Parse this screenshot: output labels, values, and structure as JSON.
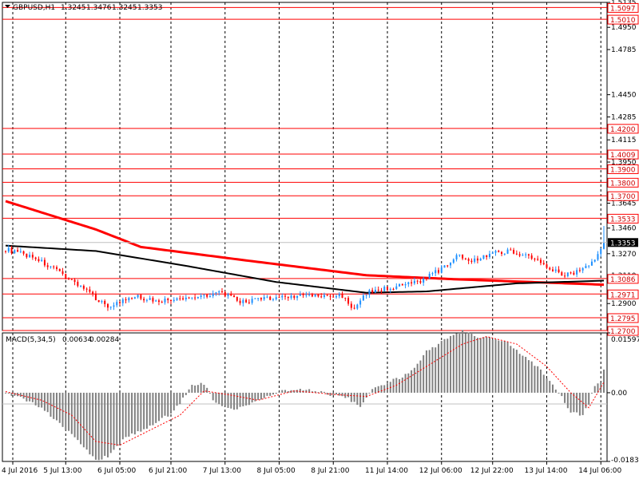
{
  "window": {
    "title": "GBPUSD,H1",
    "ohlc_values": [
      "1.3245",
      "1.3476",
      "1.3245",
      "1.3353"
    ],
    "dropdown_icon": "triangle-down-icon"
  },
  "colors": {
    "bull_candle": "#1e90ff",
    "bear_candle": "#ff0000",
    "level_line": "#ff0000",
    "ma_slow": "#ff0000",
    "ma_fast": "#000000",
    "macd_hist": "#808080",
    "macd_signal": "#ff0000",
    "grid": "#000000",
    "price_tag_bg": "#000000",
    "price_tag_text": "#ffffff"
  },
  "chart_data": [
    {
      "type": "candlestick",
      "title": "GBPUSD,H1",
      "price_axis": {
        "ticks": [
          "1.5135",
          "1.4950",
          "1.4785",
          "1.4450",
          "1.4285",
          "1.4115",
          "1.3950",
          "1.3645",
          "1.3460",
          "1.3270",
          "1.3110",
          "1.2900"
        ],
        "ylim": [
          1.27,
          1.5135
        ]
      },
      "x_ticks": [
        "4 Jul 2016",
        "5 Jul 13:00",
        "6 Jul 05:00",
        "6 Jul 21:00",
        "7 Jul 13:00",
        "8 Jul 05:00",
        "8 Jul 21:00",
        "11 Jul 14:00",
        "12 Jul 06:00",
        "12 Jul 22:00",
        "13 Jul 14:00",
        "14 Jul 06:00"
      ],
      "grid": "vertical-dashed",
      "current_price": "1.3353",
      "levels": [
        "1.5097",
        "1.5010",
        "1.4200",
        "1.4009",
        "1.3900",
        "1.3800",
        "1.3700",
        "1.3533",
        "1.3086",
        "1.2971",
        "1.2795",
        "1.2700"
      ],
      "bars": 200,
      "trajectory": [
        [
          0,
          1.3303
        ],
        [
          10,
          1.324
        ],
        [
          14,
          1.318
        ],
        [
          20,
          1.31
        ],
        [
          25,
          1.303
        ],
        [
          30,
          1.294
        ],
        [
          34,
          1.288
        ],
        [
          38,
          1.291
        ],
        [
          44,
          1.295
        ],
        [
          50,
          1.292
        ],
        [
          58,
          1.293
        ],
        [
          65,
          1.296
        ],
        [
          72,
          1.298
        ],
        [
          78,
          1.291
        ],
        [
          84,
          1.293
        ],
        [
          92,
          1.295
        ],
        [
          100,
          1.296
        ],
        [
          108,
          1.295
        ],
        [
          112,
          1.296
        ],
        [
          116,
          1.285
        ],
        [
          120,
          1.298
        ],
        [
          126,
          1.301
        ],
        [
          132,
          1.303
        ],
        [
          138,
          1.307
        ],
        [
          146,
          1.317
        ],
        [
          150,
          1.326
        ],
        [
          156,
          1.322
        ],
        [
          162,
          1.328
        ],
        [
          168,
          1.329
        ],
        [
          174,
          1.325
        ],
        [
          180,
          1.318
        ],
        [
          186,
          1.311
        ],
        [
          190,
          1.314
        ],
        [
          196,
          1.322
        ],
        [
          199,
          1.3353
        ]
      ],
      "ma_slow": [
        [
          0,
          1.366
        ],
        [
          30,
          1.345
        ],
        [
          45,
          1.332
        ],
        [
          80,
          1.322
        ],
        [
          120,
          1.311
        ],
        [
          150,
          1.308
        ],
        [
          199,
          1.304
        ]
      ],
      "ma_fast": [
        [
          0,
          1.333
        ],
        [
          30,
          1.329
        ],
        [
          60,
          1.318
        ],
        [
          90,
          1.306
        ],
        [
          120,
          1.298
        ],
        [
          140,
          1.299
        ],
        [
          170,
          1.305
        ],
        [
          199,
          1.307
        ]
      ]
    },
    {
      "type": "bar",
      "title": "MACD(5,34,5)",
      "values_text": [
        "0.00634",
        "0.00284"
      ],
      "y_ticks": [
        "0.01597",
        "0.00",
        "-0.01834"
      ],
      "ylim": [
        -0.01834,
        0.01597
      ],
      "histogram": [
        [
          0,
          0.0002
        ],
        [
          10,
          -0.003
        ],
        [
          18,
          -0.008
        ],
        [
          24,
          -0.013
        ],
        [
          30,
          -0.018
        ],
        [
          34,
          -0.017
        ],
        [
          40,
          -0.012
        ],
        [
          48,
          -0.009
        ],
        [
          56,
          -0.005
        ],
        [
          62,
          0.002
        ],
        [
          66,
          0.0025
        ],
        [
          70,
          -0.003
        ],
        [
          76,
          -0.0045
        ],
        [
          84,
          -0.002
        ],
        [
          92,
          0.0005
        ],
        [
          100,
          0.001
        ],
        [
          108,
          -0.0005
        ],
        [
          114,
          -0.0015
        ],
        [
          118,
          -0.004
        ],
        [
          122,
          0.001
        ],
        [
          128,
          0.003
        ],
        [
          134,
          0.005
        ],
        [
          140,
          0.011
        ],
        [
          148,
          0.015
        ],
        [
          152,
          0.0165
        ],
        [
          156,
          0.015
        ],
        [
          166,
          0.014
        ],
        [
          172,
          0.01
        ],
        [
          178,
          0.006
        ],
        [
          184,
          0.0
        ],
        [
          188,
          -0.005
        ],
        [
          192,
          -0.006
        ],
        [
          194,
          -0.003
        ],
        [
          196,
          0.002
        ],
        [
          198,
          0.003
        ],
        [
          199,
          0.0063
        ]
      ],
      "signal": [
        [
          0,
          0.0003
        ],
        [
          12,
          -0.002
        ],
        [
          22,
          -0.006
        ],
        [
          30,
          -0.013
        ],
        [
          38,
          -0.014
        ],
        [
          48,
          -0.01
        ],
        [
          58,
          -0.006
        ],
        [
          66,
          0.0005
        ],
        [
          74,
          -0.0005
        ],
        [
          84,
          -0.002
        ],
        [
          96,
          0.0005
        ],
        [
          110,
          -0.0005
        ],
        [
          120,
          -0.001
        ],
        [
          130,
          0.002
        ],
        [
          142,
          0.008
        ],
        [
          152,
          0.013
        ],
        [
          160,
          0.015
        ],
        [
          170,
          0.013
        ],
        [
          180,
          0.007
        ],
        [
          188,
          0.0
        ],
        [
          194,
          -0.004
        ],
        [
          199,
          0.0028
        ]
      ]
    }
  ]
}
